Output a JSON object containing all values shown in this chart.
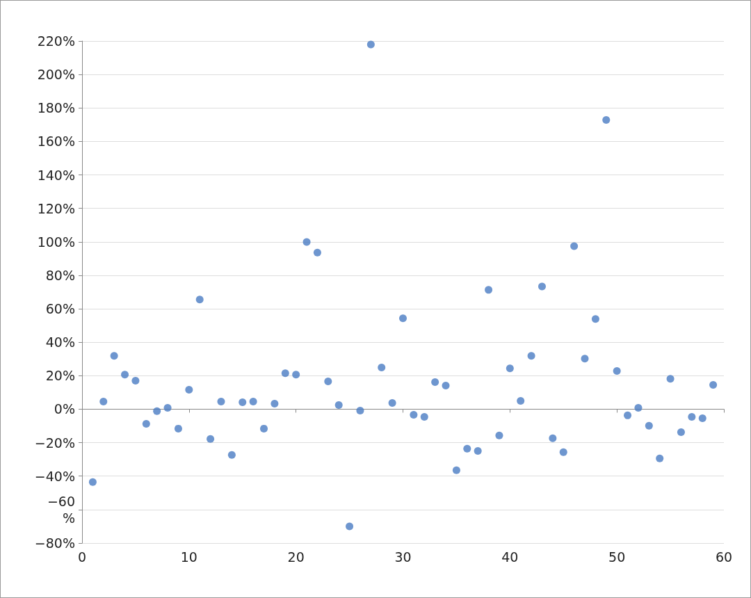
{
  "chart_data": {
    "type": "scatter",
    "color": "#4a7cc3",
    "marker": "circle",
    "grid": "y",
    "x": [
      1,
      2,
      3,
      4,
      5,
      6,
      7,
      8,
      9,
      10,
      11,
      12,
      13,
      14,
      15,
      16,
      17,
      18,
      19,
      20,
      21,
      22,
      23,
      24,
      25,
      26,
      27,
      28,
      29,
      30,
      31,
      32,
      33,
      34,
      35,
      36,
      37,
      38,
      39,
      40,
      41,
      42,
      43,
      44,
      45,
      46,
      47,
      48,
      49,
      50,
      51,
      52,
      53,
      54,
      55,
      56,
      57,
      58,
      59
    ],
    "values": [
      -43.5,
      4.6,
      31.9,
      20.7,
      17,
      -8.7,
      -1.2,
      0.8,
      -11.6,
      11.6,
      65.5,
      -17.8,
      4.6,
      -27.3,
      4.1,
      4.6,
      -11.6,
      3.3,
      21.5,
      20.7,
      99.9,
      93.6,
      16.6,
      2.5,
      -70,
      -0.8,
      217.9,
      24.9,
      3.7,
      54.3,
      -3.3,
      -4.6,
      16.2,
      14.1,
      -36.5,
      -23.6,
      -24.9,
      71.3,
      -15.7,
      24.4,
      5,
      31.9,
      73.3,
      -17.4,
      -25.7,
      97.4,
      30.2,
      53.9,
      172.8,
      22.8,
      -3.7,
      0.8,
      -9.9,
      -29.4,
      18.2,
      -13.7,
      -4.6,
      -5.4,
      14.5
    ],
    "xlim": [
      0,
      60
    ],
    "xticks": [
      0,
      10,
      20,
      30,
      40,
      50,
      60
    ],
    "ylim": [
      -80,
      220
    ],
    "yticks": [
      {
        "value": -80,
        "label": "−80%"
      },
      {
        "value": -60,
        "label": "−60\n%"
      },
      {
        "value": -40,
        "label": "−40%"
      },
      {
        "value": -20,
        "label": "−20%"
      },
      {
        "value": 0,
        "label": "0%"
      },
      {
        "value": 20,
        "label": "20%"
      },
      {
        "value": 40,
        "label": "40%"
      },
      {
        "value": 60,
        "label": "60%"
      },
      {
        "value": 80,
        "label": "80%"
      },
      {
        "value": 100,
        "label": "100%"
      },
      {
        "value": 120,
        "label": "120%"
      },
      {
        "value": 140,
        "label": "140%"
      },
      {
        "value": 160,
        "label": "160%"
      },
      {
        "value": 180,
        "label": "180%"
      },
      {
        "value": 200,
        "label": "200%"
      },
      {
        "value": 220,
        "label": "220%"
      }
    ]
  }
}
